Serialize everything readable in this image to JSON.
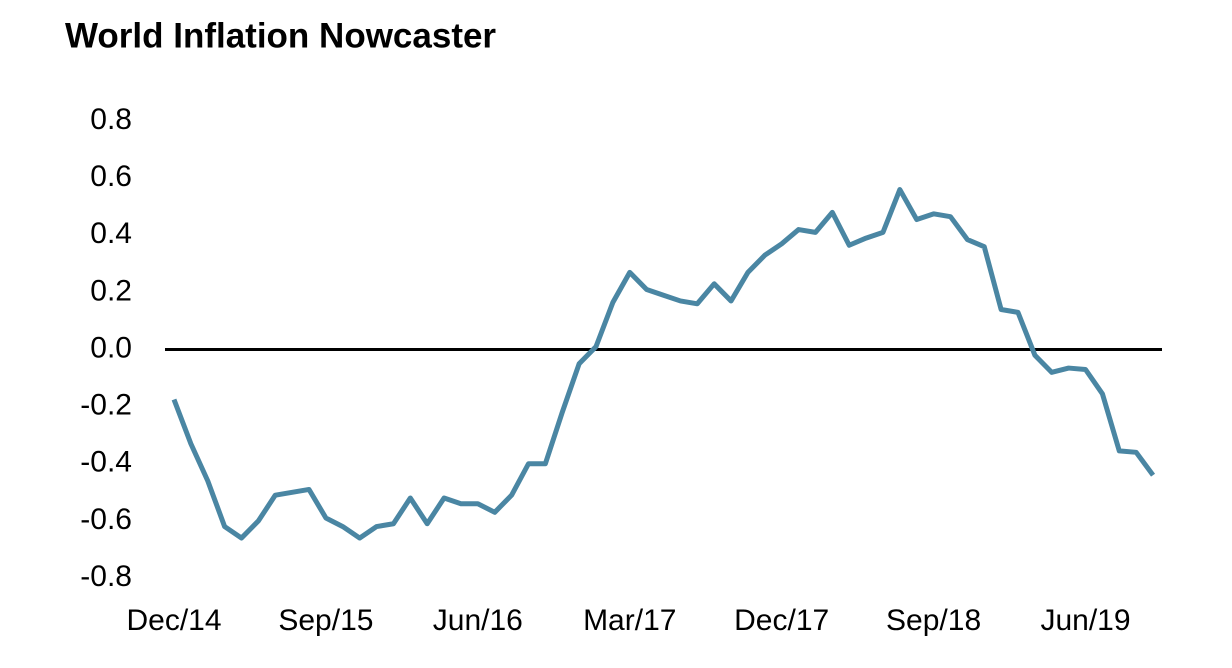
{
  "chart_data": {
    "type": "line",
    "title": "World Inflation Nowcaster",
    "categories": [
      "Dec/14",
      null,
      null,
      null,
      null,
      null,
      null,
      null,
      null,
      "Sep/15",
      null,
      null,
      null,
      null,
      null,
      null,
      null,
      null,
      "Jun/16",
      null,
      null,
      null,
      null,
      null,
      null,
      null,
      null,
      "Mar/17",
      null,
      null,
      null,
      null,
      null,
      null,
      null,
      null,
      "Dec/17",
      null,
      null,
      null,
      null,
      null,
      null,
      null,
      null,
      "Sep/18",
      null,
      null,
      null,
      null,
      null,
      null,
      null,
      null,
      "Jun/19",
      null,
      null,
      null,
      null
    ],
    "series": [
      {
        "color": "#4a86a3",
        "values": [
          -0.175,
          -0.33,
          -0.46,
          -0.62,
          -0.66,
          -0.6,
          -0.51,
          -0.5,
          -0.49,
          -0.59,
          -0.62,
          -0.66,
          -0.62,
          -0.61,
          -0.52,
          -0.61,
          -0.52,
          -0.54,
          -0.54,
          -0.57,
          -0.51,
          -0.4,
          -0.4,
          -0.22,
          -0.05,
          0.01,
          0.165,
          0.27,
          0.21,
          0.19,
          0.17,
          0.16,
          0.23,
          0.17,
          0.27,
          0.33,
          0.37,
          0.42,
          0.41,
          0.48,
          0.365,
          0.39,
          0.41,
          0.56,
          0.455,
          0.475,
          0.465,
          0.385,
          0.36,
          0.14,
          0.13,
          -0.02,
          -0.08,
          -0.065,
          -0.07,
          -0.155,
          -0.355,
          -0.36,
          -0.44
        ]
      }
    ],
    "ylim": [
      -0.8,
      0.8
    ],
    "yticks": [
      -0.8,
      -0.6,
      -0.4,
      -0.2,
      {
        "value": 0,
        "label": "0.0"
      },
      0.2,
      0.4,
      0.6,
      0.8
    ]
  }
}
